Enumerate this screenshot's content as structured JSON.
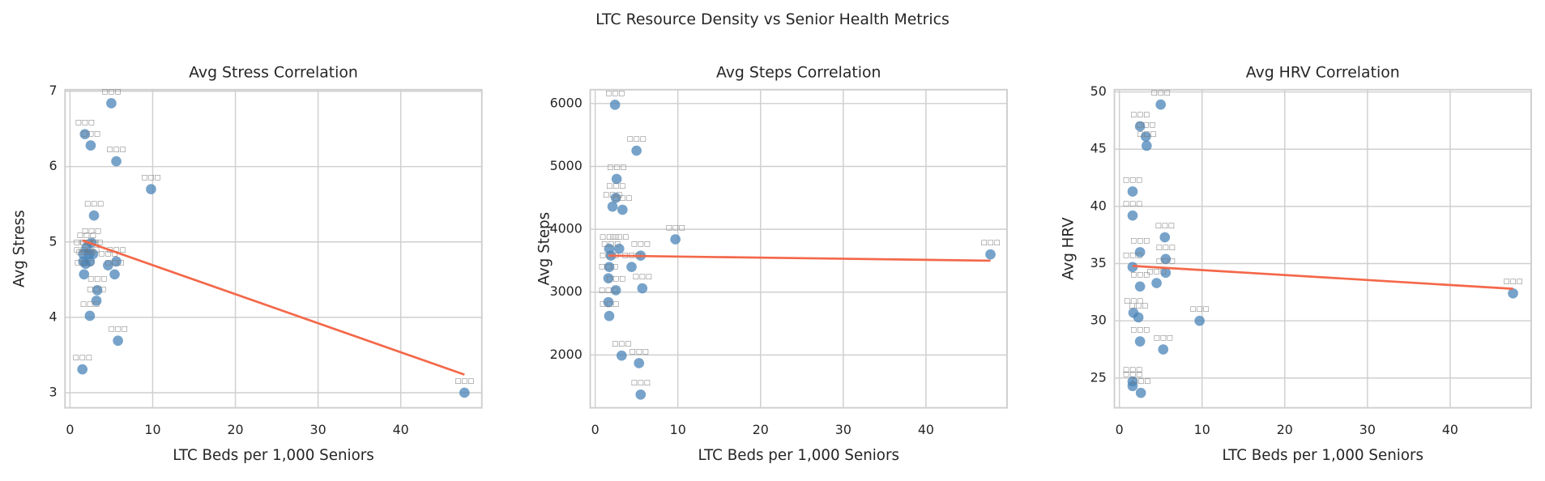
{
  "suptitle": "LTC Resource Density vs Senior Health Metrics",
  "chart_data": [
    {
      "type": "scatter",
      "title": "Avg Stress Correlation",
      "xlabel": "LTC Beds per 1,000 Seniors",
      "ylabel": "Avg Stress",
      "x": [
        5.0,
        1.8,
        2.5,
        5.6,
        9.8,
        2.9,
        2.6,
        2.0,
        1.6,
        2.3,
        2.8,
        1.6,
        2.4,
        1.9,
        1.7,
        4.6,
        5.6,
        5.4,
        3.3,
        3.2,
        2.4,
        5.8,
        1.5,
        47.7
      ],
      "y": [
        6.84,
        6.43,
        6.28,
        6.07,
        5.7,
        5.35,
        4.99,
        4.93,
        4.84,
        4.84,
        4.84,
        4.74,
        4.74,
        4.71,
        4.57,
        4.69,
        4.74,
        4.57,
        4.36,
        4.22,
        4.02,
        3.69,
        3.31,
        3.0
      ],
      "point_labels": [
        "□□□",
        "□□□",
        "□□□",
        "□□□",
        "□□□",
        "□□□",
        "□□□",
        "□□□",
        "□□□",
        "□□□",
        "□□□",
        "□□□",
        "□□□",
        "□□□",
        "□□□",
        "□□□",
        "□□□",
        "□□□",
        "□□□",
        "□□□",
        "□□□",
        "□□□",
        "□□□",
        "□□□"
      ],
      "color": "#4a84b8",
      "trend": {
        "color": "#f4684a",
        "x": [
          1.5,
          47.7
        ],
        "y": [
          5.02,
          3.24
        ]
      },
      "xlim": [
        -0.6,
        49.8
      ],
      "ylim": [
        2.8,
        7.02
      ],
      "xticks": [
        0,
        10,
        20,
        30,
        40
      ],
      "yticks": [
        3,
        4,
        5,
        6,
        7
      ],
      "grid": true
    },
    {
      "type": "scatter",
      "title": "Avg Steps Correlation",
      "xlabel": "LTC Beds per 1,000 Seniors",
      "ylabel": "Avg Steps",
      "x": [
        2.4,
        5.0,
        2.6,
        2.5,
        2.1,
        3.3,
        9.7,
        47.8,
        1.7,
        2.9,
        1.9,
        5.5,
        4.4,
        1.7,
        1.6,
        2.5,
        5.7,
        1.6,
        1.7,
        3.2,
        5.3,
        5.5
      ],
      "y": [
        5980,
        5250,
        4800,
        4500,
        4360,
        4310,
        3840,
        3600,
        3690,
        3690,
        3580,
        3580,
        3400,
        3400,
        3220,
        3030,
        3060,
        2840,
        2620,
        1990,
        1870,
        1370
      ],
      "point_labels": [
        "□□□",
        "□□□",
        "□□□",
        "□□□",
        "□□□",
        "□□□",
        "□□□",
        "□□□",
        "□□□",
        "□□□",
        "□□□",
        "□□□",
        "□□□",
        "□□□",
        "□□□",
        "□□□",
        "□□□",
        "□□□",
        "□□□",
        "□□□",
        "□□□",
        "□□□"
      ],
      "color": "#4a84b8",
      "trend": {
        "color": "#f4684a",
        "x": [
          1.6,
          47.8
        ],
        "y": [
          3580,
          3500
        ]
      },
      "xlim": [
        -0.6,
        49.8
      ],
      "ylim": [
        1160,
        6220
      ],
      "xticks": [
        0,
        10,
        20,
        30,
        40
      ],
      "yticks": [
        2000,
        3000,
        4000,
        5000,
        6000
      ],
      "grid": true
    },
    {
      "type": "scatter",
      "title": "Avg HRV Correlation",
      "xlabel": "LTC Beds per 1,000 Seniors",
      "ylabel": "Avg HRV",
      "x": [
        5.0,
        2.5,
        3.2,
        3.3,
        1.6,
        1.6,
        5.5,
        2.5,
        5.6,
        1.6,
        5.6,
        4.5,
        2.5,
        47.6,
        1.7,
        2.3,
        9.7,
        2.5,
        5.3,
        1.6,
        1.6,
        2.6
      ],
      "y": [
        48.9,
        47.0,
        46.1,
        45.3,
        41.3,
        39.2,
        37.3,
        36.0,
        35.4,
        34.7,
        34.2,
        33.3,
        33.0,
        32.4,
        30.7,
        30.3,
        30.0,
        28.2,
        27.5,
        24.7,
        24.3,
        23.7
      ],
      "point_labels": [
        "□□□",
        "□□□",
        "□□□",
        "□□□",
        "□□□",
        "□□□",
        "□□□",
        "□□□",
        "□□□",
        "□□□",
        "□□□",
        "□□□",
        "□□□",
        "□□□",
        "□□□",
        "□□□",
        "□□□",
        "□□□",
        "□□□",
        "□□□",
        "□□□",
        "□□□"
      ],
      "color": "#4a84b8",
      "trend": {
        "color": "#f4684a",
        "x": [
          1.6,
          47.6
        ],
        "y": [
          34.8,
          32.8
        ]
      },
      "xlim": [
        -0.6,
        49.8
      ],
      "ylim": [
        22.4,
        50.2
      ],
      "xticks": [
        0,
        10,
        20,
        30,
        40
      ],
      "yticks": [
        25,
        30,
        35,
        40,
        45,
        50
      ],
      "grid": true
    }
  ]
}
